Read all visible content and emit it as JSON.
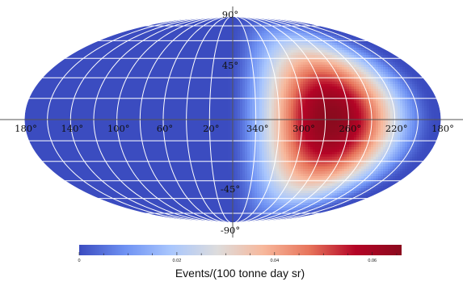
{
  "chart_data": {
    "type": "heatmap",
    "projection": "mollweide",
    "field": {
      "hotspot_longitude_deg": 275,
      "hotspot_latitude_deg": 0,
      "peak_value": 0.066,
      "min_value": 0
    },
    "meridians_deg": [
      180,
      200,
      220,
      240,
      260,
      280,
      300,
      320,
      340,
      0,
      20,
      40,
      60,
      80,
      100,
      120,
      140,
      160
    ],
    "parallels_deg": [
      -75,
      -60,
      -45,
      -30,
      -15,
      15,
      30,
      45,
      60,
      75
    ],
    "longitude_labels": [
      {
        "lon": 180,
        "text": "180°"
      },
      {
        "lon": 220,
        "text": "220°"
      },
      {
        "lon": 260,
        "text": "260°"
      },
      {
        "lon": 300,
        "text": "300°"
      },
      {
        "lon": 340,
        "text": "340°"
      },
      {
        "lon": 20,
        "text": "20°"
      },
      {
        "lon": 60,
        "text": "60°"
      },
      {
        "lon": 100,
        "text": "100°"
      },
      {
        "lon": 140,
        "text": "140°"
      },
      {
        "lon": -180,
        "text": "180°"
      }
    ],
    "latitude_labels": [
      {
        "lat": 90,
        "text": "90°"
      },
      {
        "lat": 45,
        "text": "45°"
      },
      {
        "lat": -45,
        "text": "-45°"
      },
      {
        "lat": -90,
        "text": "-90°"
      }
    ],
    "colorbar": {
      "title": "Events/(100 tonne day sr)",
      "min": 0,
      "max": 0.066,
      "tick_labels": [
        {
          "value": 0,
          "text": "0"
        },
        {
          "value": 0.02,
          "text": "0.02"
        },
        {
          "value": 0.04,
          "text": "0.04"
        },
        {
          "value": 0.06,
          "text": "0.06"
        }
      ],
      "colormap": [
        "#3b4cc0",
        "#6f92f3",
        "#aac7fd",
        "#dddcdc",
        "#f7b89c",
        "#e7745b",
        "#b40426",
        "#8b0a1e"
      ]
    }
  }
}
